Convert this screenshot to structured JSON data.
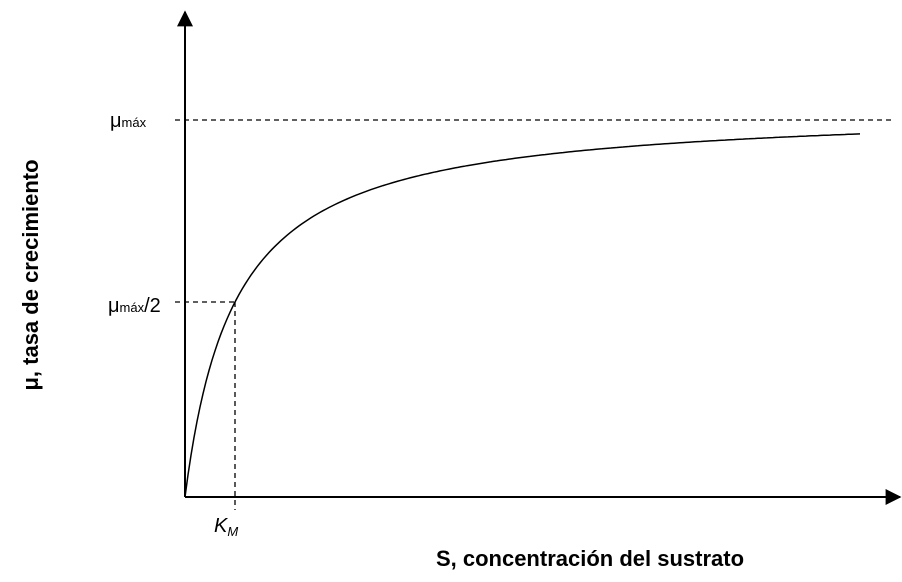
{
  "y_axis_label": "μ, tasa de crecimiento",
  "x_axis_label": "S, concentración del sustrato",
  "labels": {
    "mu_max": {
      "symbol": "μ",
      "subscript": "máx"
    },
    "mu_half": {
      "symbol": "μ",
      "subscript": "máx",
      "suffix": "/2"
    },
    "km": {
      "symbol": "K",
      "subscript": "M"
    }
  }
}
